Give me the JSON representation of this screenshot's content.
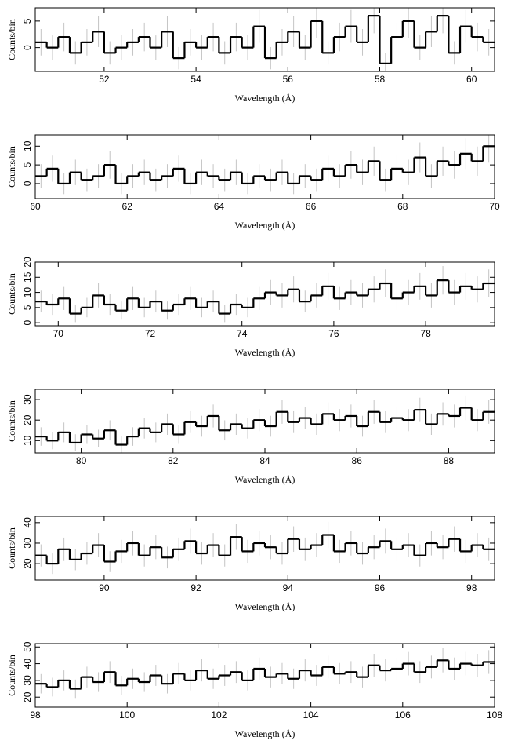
{
  "chart_data": [
    {
      "type": "histogram",
      "xlabel": "Wavelength (Å)",
      "ylabel": "Counts/bin",
      "color": "#000000",
      "error_color": "#c4c4c4",
      "bins": [
        50.5,
        50.75,
        51,
        51.25,
        51.5,
        51.75,
        52,
        52.25,
        52.5,
        52.75,
        53,
        53.25,
        53.5,
        53.75,
        54,
        54.25,
        54.5,
        54.75,
        55,
        55.25,
        55.5,
        55.75,
        56,
        56.25,
        56.5,
        56.75,
        57,
        57.25,
        57.5,
        57.75,
        58,
        58.25,
        58.5,
        58.75,
        59,
        59.25,
        59.5,
        59.75,
        60,
        60.25,
        60.5
      ],
      "values": [
        1,
        0,
        2,
        -1,
        1,
        3,
        -1,
        0,
        1,
        2,
        0,
        3,
        -2,
        1,
        0,
        2,
        -1,
        2,
        0,
        4,
        -2,
        1,
        3,
        0,
        5,
        -1,
        2,
        4,
        1,
        6,
        -3,
        2,
        5,
        0,
        3,
        6,
        -1,
        4,
        2,
        1
      ],
      "errors": [
        2.5,
        2.3,
        2.7,
        2.2,
        2.5,
        2.9,
        2.2,
        2.4,
        2.5,
        2.7,
        2.3,
        2.9,
        2.1,
        2.5,
        2.4,
        2.7,
        2.2,
        2.7,
        2.4,
        3.1,
        2.1,
        2.5,
        2.9,
        2.4,
        3.2,
        2.2,
        2.7,
        3.1,
        2.5,
        3.3,
        2,
        2.7,
        3.2,
        2.4,
        2.9,
        3.3,
        2.2,
        3.1,
        2.7,
        2.5
      ],
      "xlim": [
        50.5,
        60.5
      ],
      "xticks": [
        52,
        54,
        56,
        58,
        60
      ],
      "ylim": [
        -4.5,
        7.5
      ],
      "yticks": [
        0,
        5
      ]
    },
    {
      "type": "histogram",
      "xlabel": "Wavelength (Å)",
      "ylabel": "Counts/bin",
      "color": "#000000",
      "error_color": "#c4c4c4",
      "bins": [
        60,
        60.25,
        60.5,
        60.75,
        61,
        61.25,
        61.5,
        61.75,
        62,
        62.25,
        62.5,
        62.75,
        63,
        63.25,
        63.5,
        63.75,
        64,
        64.25,
        64.5,
        64.75,
        65,
        65.25,
        65.5,
        65.75,
        66,
        66.25,
        66.5,
        66.75,
        67,
        67.25,
        67.5,
        67.75,
        68,
        68.25,
        68.5,
        68.75,
        69,
        69.25,
        69.5,
        69.75,
        70
      ],
      "values": [
        2,
        4,
        0,
        3,
        1,
        2,
        5,
        0,
        2,
        3,
        1,
        2,
        4,
        0,
        3,
        2,
        1,
        3,
        0,
        2,
        1,
        3,
        0,
        2,
        1,
        4,
        2,
        5,
        3,
        6,
        1,
        4,
        3,
        7,
        2,
        6,
        5,
        8,
        6,
        10
      ],
      "errors": [
        3.2,
        3.5,
        2.8,
        3.4,
        3,
        3.2,
        3.7,
        2.8,
        3.2,
        3.4,
        3,
        3.2,
        3.5,
        2.8,
        3.4,
        3.2,
        3,
        3.4,
        2.8,
        3.2,
        3,
        3.4,
        2.8,
        3.2,
        3,
        3.5,
        3.2,
        3.7,
        3.4,
        3.9,
        3,
        3.5,
        3.4,
        4,
        3.2,
        3.9,
        3.7,
        4.1,
        3.9,
        4.4
      ],
      "xlim": [
        60,
        70
      ],
      "xticks": [
        60,
        62,
        64,
        66,
        68,
        70
      ],
      "ylim": [
        -4,
        13
      ],
      "yticks": [
        0,
        5,
        10
      ]
    },
    {
      "type": "histogram",
      "xlabel": "Wavelength (Å)",
      "ylabel": "Counts/bin",
      "color": "#000000",
      "error_color": "#c4c4c4",
      "bins": [
        69.5,
        69.75,
        70,
        70.25,
        70.5,
        70.75,
        71,
        71.25,
        71.5,
        71.75,
        72,
        72.25,
        72.5,
        72.75,
        73,
        73.25,
        73.5,
        73.75,
        74,
        74.25,
        74.5,
        74.75,
        75,
        75.25,
        75.5,
        75.75,
        76,
        76.25,
        76.5,
        76.75,
        77,
        77.25,
        77.5,
        77.75,
        78,
        78.25,
        78.5,
        78.75,
        79,
        79.25,
        79.5
      ],
      "values": [
        7,
        6,
        8,
        3,
        5,
        9,
        6,
        4,
        8,
        5,
        7,
        4,
        6,
        8,
        5,
        7,
        3,
        6,
        5,
        8,
        10,
        9,
        11,
        7,
        9,
        12,
        8,
        10,
        9,
        11,
        13,
        8,
        10,
        12,
        9,
        14,
        10,
        12,
        11,
        13
      ],
      "errors": [
        3.6,
        3.4,
        3.8,
        2.8,
        3.2,
        4,
        3.4,
        3,
        3.8,
        3.2,
        3.6,
        3,
        3.4,
        3.8,
        3.2,
        3.6,
        2.8,
        3.4,
        3.2,
        3.8,
        4.1,
        4,
        4.3,
        3.6,
        4,
        4.4,
        3.8,
        4.1,
        4,
        4.3,
        4.6,
        3.8,
        4.1,
        4.4,
        4,
        4.7,
        4.1,
        4.4,
        4.3,
        4.6
      ],
      "xlim": [
        69.5,
        79.5
      ],
      "xticks": [
        70,
        72,
        74,
        76,
        78
      ],
      "ylim": [
        -1,
        20
      ],
      "yticks": [
        0,
        5,
        10,
        15,
        20
      ]
    },
    {
      "type": "histogram",
      "xlabel": "Wavelength (Å)",
      "ylabel": "Counts/bin",
      "color": "#000000",
      "error_color": "#c4c4c4",
      "bins": [
        79,
        79.25,
        79.5,
        79.75,
        80,
        80.25,
        80.5,
        80.75,
        81,
        81.25,
        81.5,
        81.75,
        82,
        82.25,
        82.5,
        82.75,
        83,
        83.25,
        83.5,
        83.75,
        84,
        84.25,
        84.5,
        84.75,
        85,
        85.25,
        85.5,
        85.75,
        86,
        86.25,
        86.5,
        86.75,
        87,
        87.25,
        87.5,
        87.75,
        88,
        88.25,
        88.5,
        88.75,
        89
      ],
      "values": [
        12,
        10,
        14,
        9,
        13,
        11,
        15,
        8,
        12,
        16,
        14,
        18,
        13,
        19,
        17,
        22,
        15,
        18,
        16,
        20,
        17,
        24,
        19,
        21,
        18,
        23,
        20,
        22,
        17,
        24,
        19,
        21,
        20,
        25,
        18,
        23,
        22,
        26,
        20,
        24
      ],
      "errors": [
        4.5,
        4.2,
        4.8,
        4.1,
        4.6,
        4.3,
        4.9,
        4,
        4.5,
        5,
        4.8,
        5.2,
        4.6,
        5.3,
        5.1,
        5.6,
        4.9,
        5.2,
        5,
        5.4,
        5.1,
        5.8,
        5.3,
        5.5,
        5.2,
        5.7,
        5.4,
        5.6,
        5.1,
        5.8,
        5.3,
        5.5,
        5.4,
        5.9,
        5.2,
        5.7,
        5.6,
        6,
        5.4,
        5.8
      ],
      "xlim": [
        79,
        89
      ],
      "xticks": [
        80,
        82,
        84,
        86,
        88
      ],
      "ylim": [
        4,
        35
      ],
      "yticks": [
        10,
        20,
        30
      ]
    },
    {
      "type": "histogram",
      "xlabel": "Wavelength (Å)",
      "ylabel": "Counts/bin",
      "color": "#000000",
      "error_color": "#c4c4c4",
      "bins": [
        88.5,
        88.75,
        89,
        89.25,
        89.5,
        89.75,
        90,
        90.25,
        90.5,
        90.75,
        91,
        91.25,
        91.5,
        91.75,
        92,
        92.25,
        92.5,
        92.75,
        93,
        93.25,
        93.5,
        93.75,
        94,
        94.25,
        94.5,
        94.75,
        95,
        95.25,
        95.5,
        95.75,
        96,
        96.25,
        96.5,
        96.75,
        97,
        97.25,
        97.5,
        97.75,
        98,
        98.25,
        98.5
      ],
      "values": [
        24,
        20,
        27,
        22,
        25,
        29,
        21,
        26,
        30,
        24,
        28,
        23,
        27,
        31,
        25,
        29,
        24,
        33,
        26,
        30,
        28,
        25,
        32,
        27,
        29,
        34,
        26,
        30,
        25,
        28,
        31,
        27,
        29,
        24,
        30,
        28,
        32,
        26,
        29,
        27
      ],
      "errors": [
        5.4,
        5,
        5.7,
        5.2,
        5.5,
        5.9,
        5.1,
        5.6,
        6,
        5.4,
        5.8,
        5.3,
        5.7,
        6.1,
        5.5,
        5.9,
        5.4,
        6.3,
        5.6,
        6,
        5.8,
        5.5,
        6.2,
        5.7,
        5.9,
        6.4,
        5.6,
        6,
        5.5,
        5.8,
        6.1,
        5.7,
        5.9,
        5.4,
        6,
        5.8,
        6.2,
        5.6,
        5.9,
        5.7
      ],
      "xlim": [
        88.5,
        98.5
      ],
      "xticks": [
        90,
        92,
        94,
        96,
        98
      ],
      "ylim": [
        12,
        43
      ],
      "yticks": [
        20,
        30,
        40
      ]
    },
    {
      "type": "histogram",
      "xlabel": "Wavelength (Å)",
      "ylabel": "Counts/bin",
      "color": "#000000",
      "error_color": "#c4c4c4",
      "bins": [
        98,
        98.25,
        98.5,
        98.75,
        99,
        99.25,
        99.5,
        99.75,
        100,
        100.25,
        100.5,
        100.75,
        101,
        101.25,
        101.5,
        101.75,
        102,
        102.25,
        102.5,
        102.75,
        103,
        103.25,
        103.5,
        103.75,
        104,
        104.25,
        104.5,
        104.75,
        105,
        105.25,
        105.5,
        105.75,
        106,
        106.25,
        106.5,
        106.75,
        107,
        107.25,
        107.5,
        107.75,
        108
      ],
      "values": [
        28,
        26,
        30,
        25,
        32,
        29,
        35,
        27,
        31,
        29,
        33,
        28,
        34,
        30,
        36,
        31,
        33,
        35,
        30,
        37,
        32,
        34,
        31,
        36,
        33,
        38,
        34,
        35,
        32,
        39,
        36,
        37,
        40,
        35,
        38,
        42,
        37,
        40,
        39,
        41
      ],
      "errors": [
        5.8,
        5.6,
        6,
        5.5,
        6.2,
        5.9,
        6.5,
        5.7,
        6.1,
        5.9,
        6.3,
        5.8,
        6.4,
        6,
        6.6,
        6.1,
        6.3,
        6.5,
        6,
        6.7,
        6.2,
        6.4,
        6.1,
        6.6,
        6.3,
        6.8,
        6.4,
        6.5,
        6.2,
        6.9,
        6.6,
        6.7,
        7,
        6.5,
        6.8,
        7.2,
        6.7,
        7,
        6.9,
        7.1
      ],
      "xlim": [
        98,
        108
      ],
      "xticks": [
        98,
        100,
        102,
        104,
        106,
        108
      ],
      "ylim": [
        14,
        52
      ],
      "yticks": [
        20,
        30,
        40,
        50
      ]
    }
  ]
}
